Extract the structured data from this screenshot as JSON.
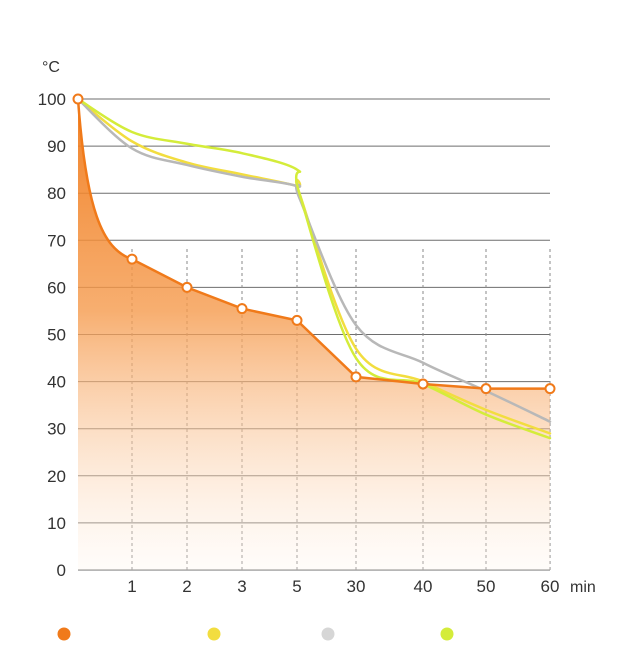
{
  "chart_data": {
    "type": "area",
    "title": "",
    "xlabel": "",
    "ylabel": "",
    "y_unit": "°C",
    "x_unit": "min",
    "categories": [
      "0",
      "1",
      "2",
      "3",
      "5",
      "30",
      "40",
      "50",
      "60"
    ],
    "x_tick_labels": [
      "1",
      "2",
      "3",
      "5",
      "30",
      "40",
      "50",
      "60"
    ],
    "y_ticks": [
      0,
      10,
      20,
      30,
      40,
      50,
      60,
      70,
      80,
      90,
      100
    ],
    "ylim": [
      0,
      100
    ],
    "grid": true,
    "legend_position": "bottom",
    "series": [
      {
        "key": "s1",
        "color": "#F07A1A",
        "style": "filled-area-with-markers",
        "x": [
          0,
          1,
          2,
          3,
          5,
          30,
          40,
          50,
          60
        ],
        "values": [
          100,
          66,
          60,
          55.5,
          53,
          41,
          39.5,
          38.5,
          38.5
        ]
      },
      {
        "key": "s2",
        "color": "#F2DD3F",
        "style": "line",
        "x": [
          0,
          1,
          2,
          3,
          5,
          6,
          30,
          40,
          50,
          60
        ],
        "values": [
          100,
          91,
          86.5,
          84,
          81.5,
          80,
          47,
          40,
          34,
          29
        ]
      },
      {
        "key": "s3",
        "color": "#B8B8B8",
        "style": "line",
        "x": [
          0,
          1,
          2,
          3,
          5,
          6,
          30,
          40,
          50,
          60
        ],
        "values": [
          100,
          89.5,
          86,
          83.5,
          81.5,
          79,
          52,
          44,
          38,
          31.5
        ]
      },
      {
        "key": "s4",
        "color": "#D4EC3A",
        "style": "line",
        "x": [
          0,
          1,
          2,
          3,
          5,
          6,
          30,
          40,
          50,
          60
        ],
        "values": [
          100,
          93,
          90.5,
          88.5,
          85,
          80,
          45,
          39.5,
          33,
          28
        ]
      }
    ],
    "legend": [
      {
        "color": "#F07A1A"
      },
      {
        "color": "#F2DD3F"
      },
      {
        "color": "#D6D6D6"
      },
      {
        "color": "#D4EC3A"
      }
    ]
  }
}
